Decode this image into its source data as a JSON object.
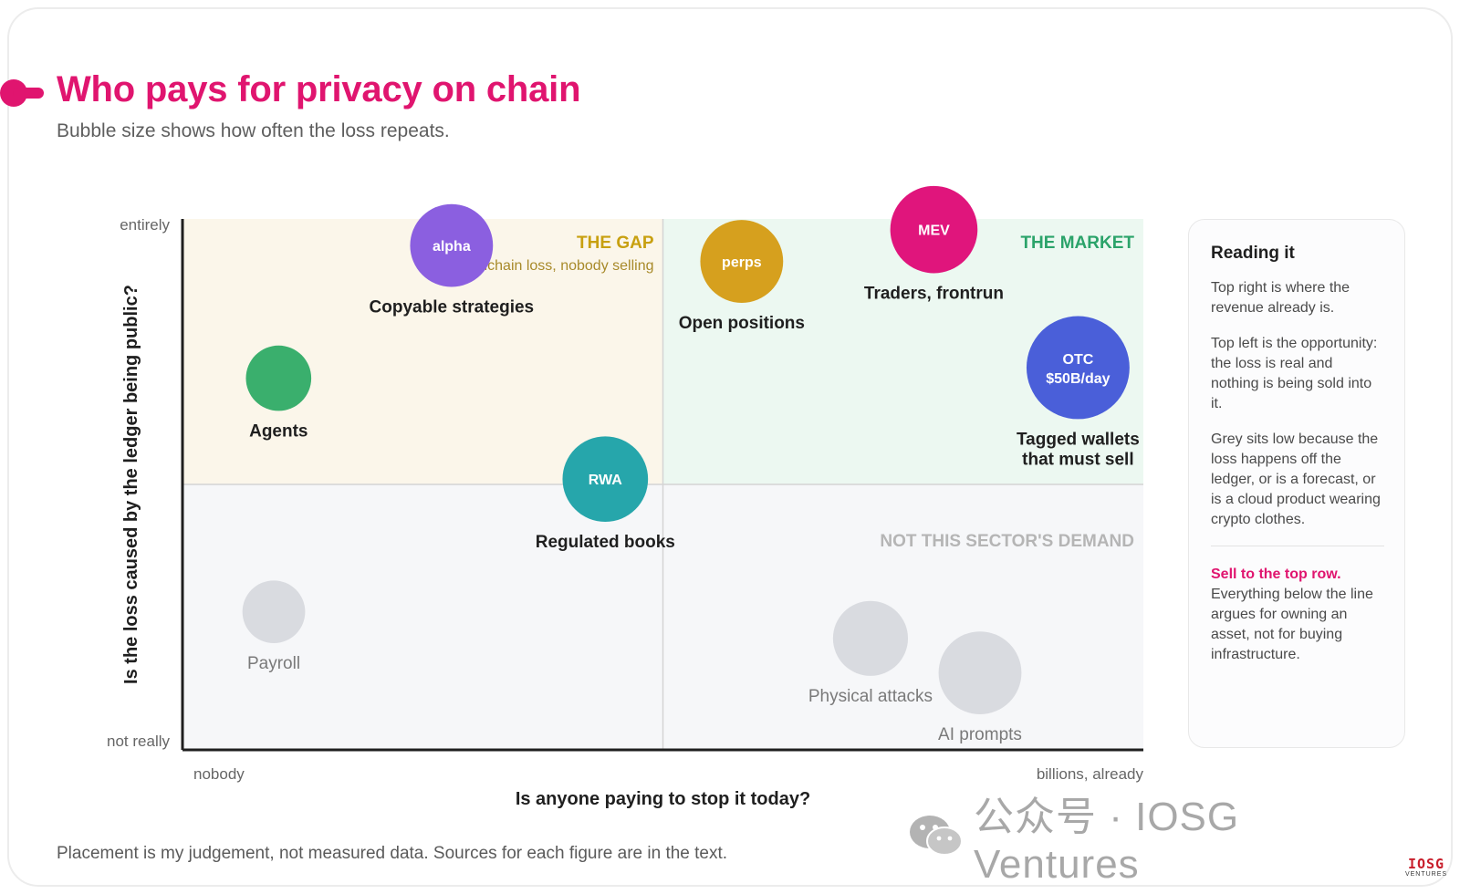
{
  "header": {
    "title": "Who pays for privacy on chain",
    "subtitle": "Bubble size shows how often the loss repeats."
  },
  "chart_data": {
    "type": "scatter",
    "title": "Who pays for privacy on chain",
    "subtitle": "Bubble size shows how often the loss repeats.",
    "xlabel": "Is anyone paying to stop it today?",
    "ylabel": "Is the loss caused by the ledger being public?",
    "x_ticks": {
      "low": "nobody",
      "high": "billions, already"
    },
    "y_ticks": {
      "low": "not really",
      "high": "entirely"
    },
    "xlim": [
      0,
      1
    ],
    "ylim": [
      0,
      1
    ],
    "grid": false,
    "quadrants": [
      {
        "id": "gap",
        "title": "THE GAP",
        "caption": "real onchain loss, nobody selling",
        "color": "#fbf6ea",
        "title_color": "#c8a010",
        "caption_color": "#a88a2a"
      },
      {
        "id": "market",
        "title": "THE MARKET",
        "caption": "",
        "color": "#ecf8f1",
        "title_color": "#2ba36a"
      },
      {
        "id": "lower",
        "title": "NOT THIS SECTOR'S DEMAND",
        "caption": "",
        "color": "#f6f7f9",
        "title_color": "#b5b5b5"
      }
    ],
    "points": [
      {
        "name": "alpha",
        "label": "Copyable strategies",
        "x": 0.28,
        "y": 0.95,
        "size": 0.55,
        "color": "#8b5fe0",
        "text_color": "#ffffff",
        "label_color": "#1f1f1f"
      },
      {
        "name": "",
        "label": "Agents",
        "x": 0.1,
        "y": 0.7,
        "size": 0.35,
        "color": "#3aaf6d",
        "text_color": "#ffffff",
        "label_color": "#1f1f1f"
      },
      {
        "name": "RWA",
        "label": "Regulated books",
        "x": 0.44,
        "y": 0.51,
        "size": 0.58,
        "color": "#26a6ab",
        "text_color": "#ffffff",
        "label_color": "#1f1f1f"
      },
      {
        "name": "perps",
        "label": "Open positions",
        "x": 0.582,
        "y": 0.92,
        "size": 0.55,
        "color": "#d6a01e",
        "text_color": "#ffffff",
        "label_color": "#1f1f1f"
      },
      {
        "name": "MEV",
        "label": "Traders, frontrun",
        "x": 0.782,
        "y": 0.98,
        "size": 0.6,
        "color": "#e0157c",
        "text_color": "#ffffff",
        "label_color": "#1f1f1f"
      },
      {
        "name": "OTC\n$50B/day",
        "label": "Tagged wallets\nthat must sell",
        "x": 0.932,
        "y": 0.72,
        "size": 0.78,
        "color": "#4a5fd9",
        "text_color": "#ffffff",
        "label_color": "#1f1f1f"
      },
      {
        "name": "",
        "label": "Payroll",
        "x": 0.095,
        "y": 0.26,
        "size": 0.32,
        "color": "#d9dbe0",
        "text_color": "#ffffff",
        "label_color": "#7a7a7a"
      },
      {
        "name": "",
        "label": "Physical attacks",
        "x": 0.716,
        "y": 0.21,
        "size": 0.46,
        "color": "#d9dbe0",
        "text_color": "#ffffff",
        "label_color": "#7a7a7a"
      },
      {
        "name": "",
        "label": "AI prompts",
        "x": 0.83,
        "y": 0.145,
        "size": 0.55,
        "color": "#d9dbe0",
        "text_color": "#ffffff",
        "label_color": "#7a7a7a"
      }
    ]
  },
  "side_panel": {
    "heading": "Reading it",
    "paragraphs": [
      "Top right is where the revenue already is.",
      "Top left is the opportunity: the loss is real and nothing is being sold into it.",
      "Grey sits low because the loss happens off the ledger, or is a forecast, or is a cloud product wearing crypto clothes."
    ],
    "cta_title": "Sell to the top row.",
    "cta_body": "Everything below the line argues for owning an asset, not for buying infrastructure."
  },
  "footnote": "Placement is my judgement, not measured data. Sources for each figure are in the text.",
  "watermark": {
    "text": "公众号 · IOSG Ventures",
    "icon": "wechat-icon"
  },
  "brand_logo": {
    "top": "IOSG",
    "bottom": "VENTURES"
  },
  "colors": {
    "accent": "#e0156f",
    "axis": "#1f1f1f"
  }
}
